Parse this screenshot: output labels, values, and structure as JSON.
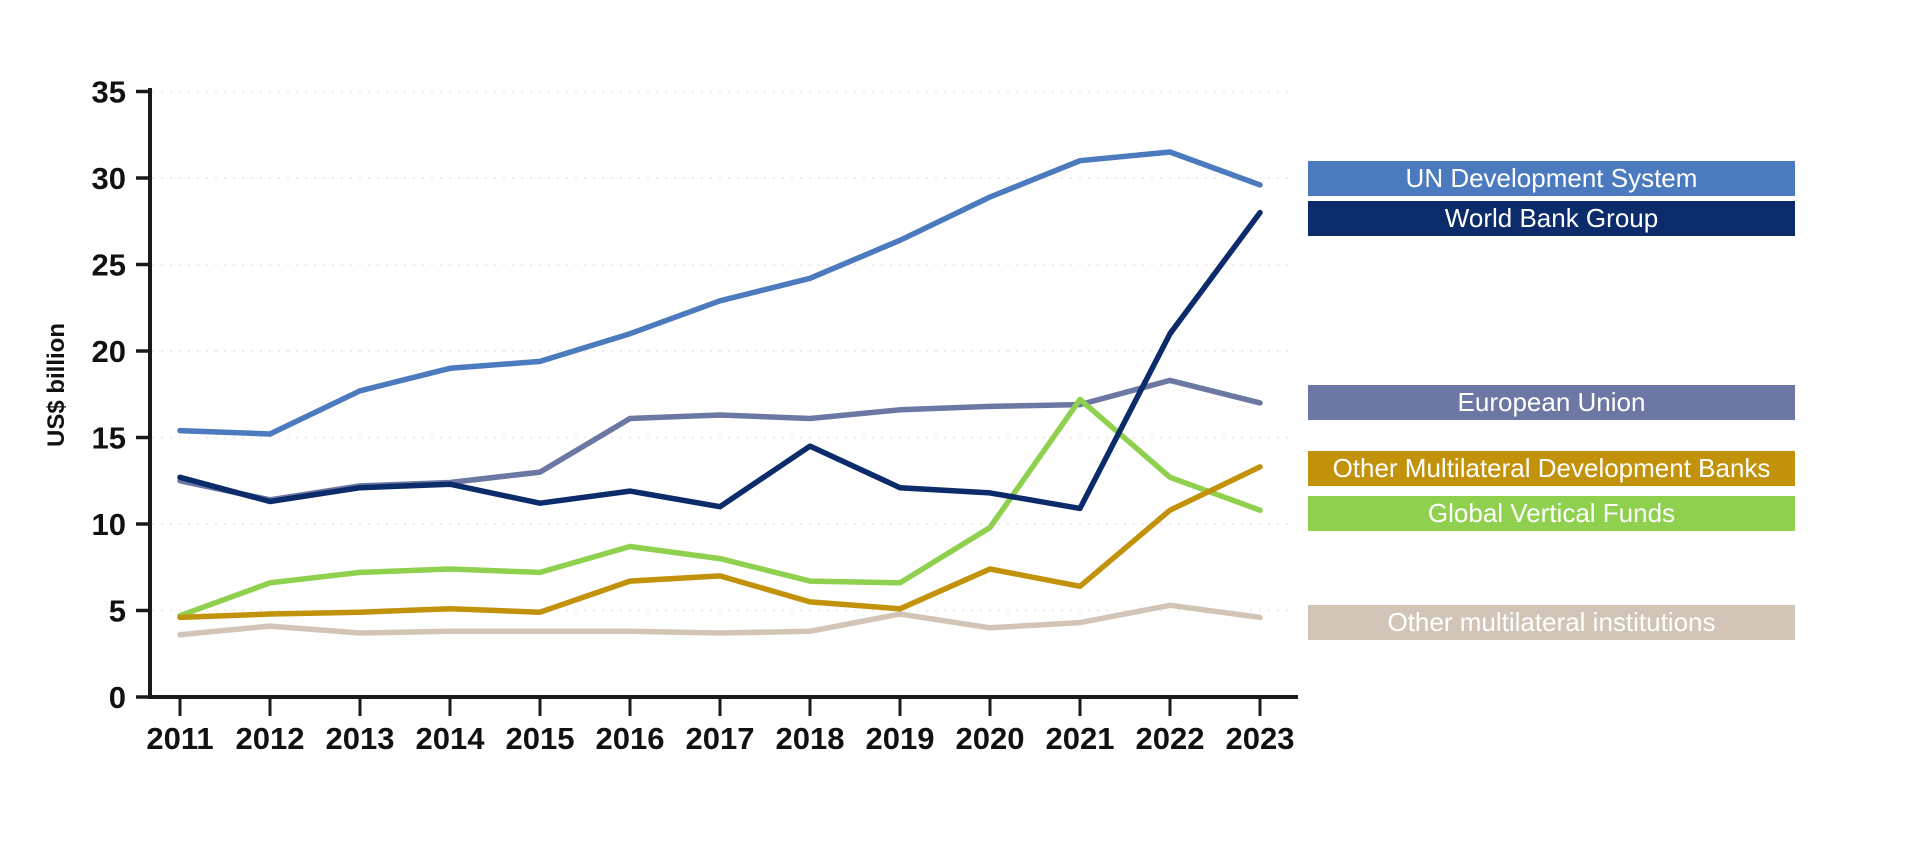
{
  "chart_data": {
    "type": "line",
    "title": "",
    "xlabel": "",
    "ylabel": "US$ billion",
    "ylim": [
      0,
      35
    ],
    "yticks": [
      0,
      5,
      10,
      15,
      20,
      25,
      30,
      35
    ],
    "x": [
      2011,
      2012,
      2013,
      2014,
      2015,
      2016,
      2017,
      2018,
      2019,
      2020,
      2021,
      2022,
      2023
    ],
    "grid": "horizontal-dotted",
    "legend_position": "right",
    "axis_color": "#1a1a1a",
    "gridline_color": "#ececec",
    "series": [
      {
        "name": "UN Development System",
        "color": "#4B7ABF",
        "values": [
          15.4,
          15.2,
          17.7,
          19.0,
          19.4,
          21.0,
          22.9,
          24.2,
          26.4,
          28.9,
          31.0,
          31.5,
          29.6
        ]
      },
      {
        "name": "World Bank Group",
        "color": "#0C2B6B",
        "values": [
          12.7,
          11.3,
          12.1,
          12.3,
          11.2,
          11.9,
          11.0,
          14.5,
          12.1,
          11.8,
          10.9,
          21.0,
          28.0
        ]
      },
      {
        "name": "European Union",
        "color": "#6C78A3",
        "values": [
          12.5,
          11.4,
          12.2,
          12.4,
          13.0,
          16.1,
          16.3,
          16.1,
          16.6,
          16.8,
          16.9,
          18.3,
          17.0
        ]
      },
      {
        "name": "Other Multilateral Development Banks",
        "color": "#C2930A",
        "values": [
          4.6,
          4.8,
          4.9,
          5.1,
          4.9,
          6.7,
          7.0,
          5.5,
          5.1,
          7.4,
          6.4,
          10.8,
          13.3
        ]
      },
      {
        "name": "Global Vertical Funds",
        "color": "#8FD14F",
        "values": [
          4.7,
          6.6,
          7.2,
          7.4,
          7.2,
          8.7,
          8.0,
          6.7,
          6.6,
          9.8,
          17.2,
          12.7,
          10.8
        ]
      },
      {
        "name": "Other multilateral institutions",
        "color": "#D2C5B7",
        "values": [
          3.6,
          4.1,
          3.7,
          3.8,
          3.8,
          3.8,
          3.7,
          3.8,
          4.8,
          4.0,
          4.3,
          5.3,
          4.6
        ]
      }
    ]
  }
}
